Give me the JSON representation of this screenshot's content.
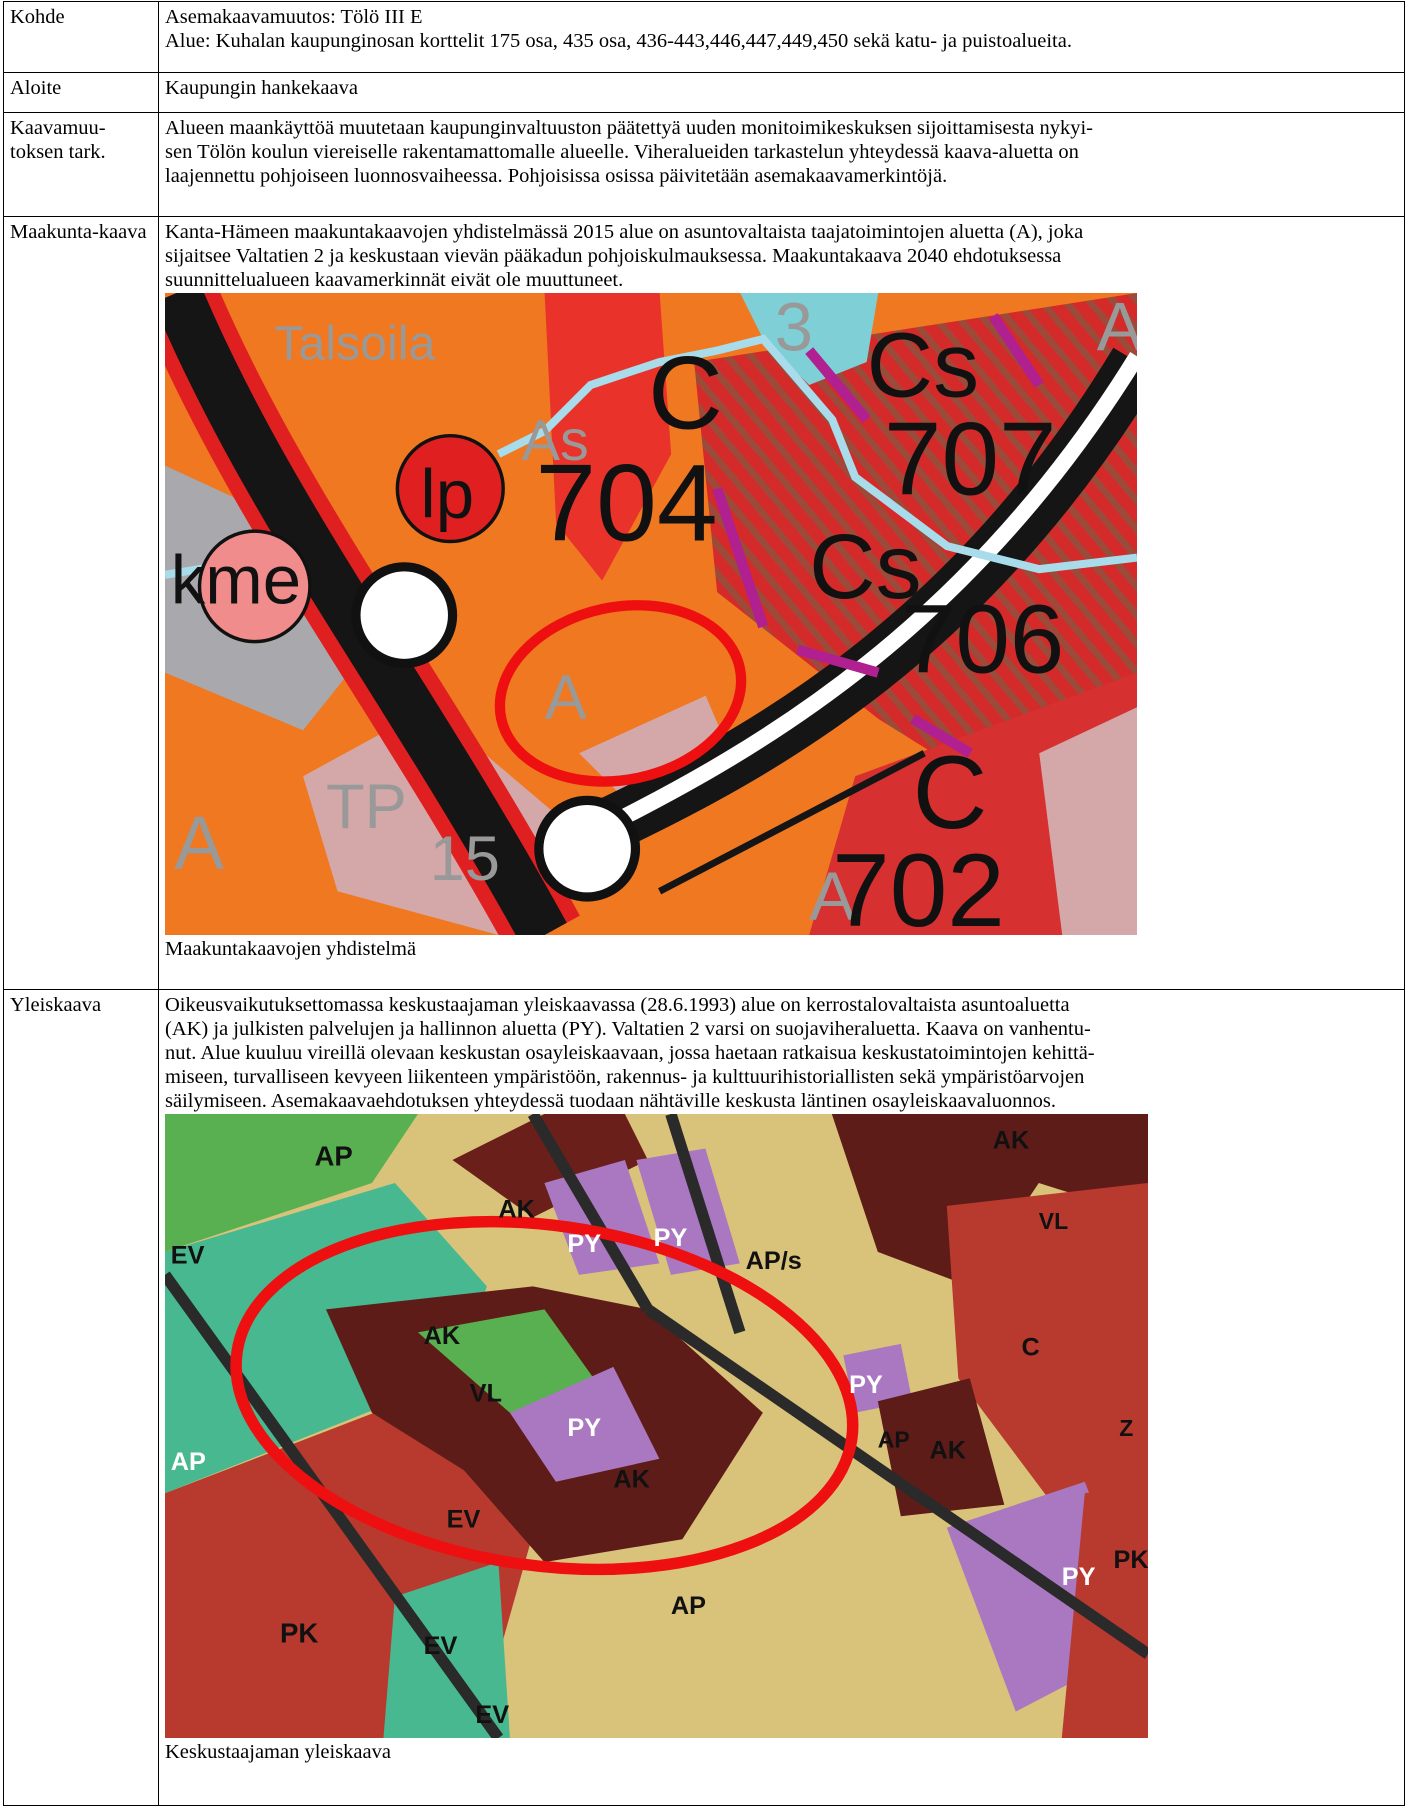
{
  "table": {
    "rows": [
      {
        "key": "Kohde",
        "lines": [
          "Asemakaavamuutos: Tölö  III E",
          "Alue: Kuhalan kaupunginosan korttelit 175 osa, 435 osa, 436-443,446,447,449,450 sekä katu- ja puistoalueita."
        ]
      },
      {
        "key": "Aloite",
        "lines": [
          "Kaupungin hankekaava"
        ]
      },
      {
        "key": "Kaavamuu-toksen tark.",
        "lines": [
          "Alueen maankäyttöä muutetaan kaupunginvaltuuston päätettyä uuden monitoimikeskuksen sijoittamisesta nykyi-",
          "sen Tölön koulun viereiselle rakentamattomalle alueelle.  Viheralueiden tarkastelun yhteydessä kaava-aluetta on",
          "laajennettu pohjoiseen luonnosvaiheessa. Pohjoisissa osissa päivitetään asemakaavamerkintöjä."
        ]
      },
      {
        "key": "Maakunta-kaava",
        "lines": [
          "Kanta-Hämeen maakuntakaavojen yhdistelmässä 2015 alue on asuntovaltaista taajatoimintojen aluetta (A), joka",
          "sijaitsee Valtatien 2 ja keskustaan vievän pääkadun pohjoiskulmauksessa. Maakuntakaava 2040 ehdotuksessa",
          "suunnittelualueen kaavamerkinnät eivät ole muuttuneet."
        ],
        "caption": "Maakuntakaavojen yhdistelmä",
        "map_labels": [
          "Talsoila",
          "3",
          "Cs",
          "As",
          "C",
          "lp",
          "704",
          "707",
          "kme",
          "Cs",
          "706",
          "A",
          "TP",
          "15",
          "A",
          "C",
          "A",
          "702",
          "A"
        ]
      },
      {
        "key": "Yleiskaava",
        "lines": [
          "Oikeusvaikutuksettomassa keskustaajaman yleiskaavassa (28.6.1993) alue on kerrostalovaltaista asuntoaluetta",
          "(AK) ja julkisten palvelujen ja hallinnon aluetta (PY). Valtatien 2 varsi on suojaviheraluetta. Kaava on vanhentu-",
          "nut. Alue kuuluu vireillä olevaan keskustan osayleiskaavaan, jossa haetaan ratkaisua keskustatoimintojen kehittä-",
          "miseen, turvalliseen kevyeen liikenteen ympäristöön, rakennus- ja kulttuurihistoriallisten sekä ympäristöarvojen",
          "säilymiseen. Asemakaavaehdotuksen yhteydessä tuodaan nähtäville keskusta läntinen osayleiskaavaluonnos."
        ],
        "caption": "Keskustaajaman yleiskaava",
        "map_labels": [
          "AP",
          "AK",
          "PY",
          "PY",
          "AP/s",
          "AK",
          "VL",
          "EV",
          "AK",
          "VL",
          "PY",
          "PY",
          "AK",
          "AP",
          "AK",
          "AP",
          "EV",
          "AP",
          "PK",
          "EV",
          "EV",
          "C",
          "PY",
          "PK",
          "Z"
        ]
      }
    ]
  }
}
